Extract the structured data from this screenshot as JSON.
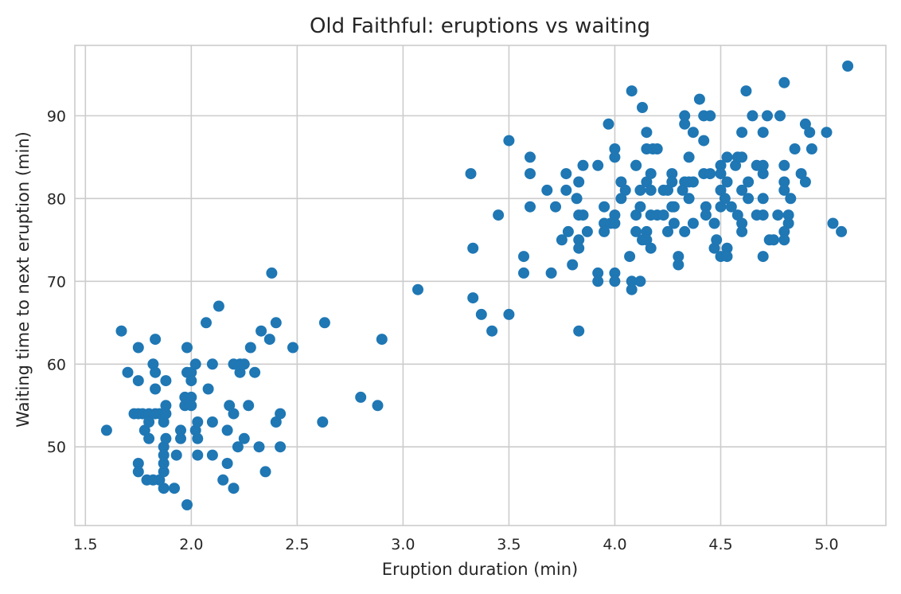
{
  "chart_data": {
    "type": "scatter",
    "title": "Old Faithful: eruptions vs waiting",
    "xlabel": "Eruption duration (min)",
    "ylabel": "Waiting time to next eruption (min)",
    "xlim": [
      1.45,
      5.28
    ],
    "ylim": [
      40.5,
      98.5
    ],
    "xticks": [
      1.5,
      2.0,
      2.5,
      3.0,
      3.5,
      4.0,
      4.5,
      5.0
    ],
    "xtick_labels": [
      "1.5",
      "2.0",
      "2.5",
      "3.0",
      "3.5",
      "4.0",
      "4.5",
      "5.0"
    ],
    "yticks": [
      50,
      60,
      70,
      80,
      90
    ],
    "ytick_labels": [
      "50",
      "60",
      "70",
      "80",
      "90"
    ],
    "grid": true,
    "marker_color": "#1f77b4",
    "points": [
      [
        1.6,
        52
      ],
      [
        1.67,
        64
      ],
      [
        1.7,
        59
      ],
      [
        1.73,
        54
      ],
      [
        1.75,
        62
      ],
      [
        1.75,
        58
      ],
      [
        1.75,
        48
      ],
      [
        1.75,
        47
      ],
      [
        1.75,
        54
      ],
      [
        1.77,
        54
      ],
      [
        1.78,
        52
      ],
      [
        1.79,
        46
      ],
      [
        1.8,
        51
      ],
      [
        1.8,
        54
      ],
      [
        1.8,
        53
      ],
      [
        1.82,
        60
      ],
      [
        1.82,
        46
      ],
      [
        1.83,
        59
      ],
      [
        1.83,
        63
      ],
      [
        1.83,
        54
      ],
      [
        1.83,
        57
      ],
      [
        1.85,
        54
      ],
      [
        1.85,
        46
      ],
      [
        1.87,
        45
      ],
      [
        1.87,
        47
      ],
      [
        1.87,
        50
      ],
      [
        1.87,
        53
      ],
      [
        1.87,
        48
      ],
      [
        1.87,
        49
      ],
      [
        1.88,
        51
      ],
      [
        1.88,
        54
      ],
      [
        1.88,
        55
      ],
      [
        1.88,
        58
      ],
      [
        1.92,
        45
      ],
      [
        1.93,
        49
      ],
      [
        1.95,
        51
      ],
      [
        1.95,
        52
      ],
      [
        1.97,
        55
      ],
      [
        1.97,
        56
      ],
      [
        1.98,
        43
      ],
      [
        1.98,
        62
      ],
      [
        1.98,
        59
      ],
      [
        2.0,
        59
      ],
      [
        2.0,
        58
      ],
      [
        2.0,
        56
      ],
      [
        2.0,
        55
      ],
      [
        2.02,
        60
      ],
      [
        2.02,
        52
      ],
      [
        2.03,
        49
      ],
      [
        2.03,
        53
      ],
      [
        2.03,
        51
      ],
      [
        2.07,
        65
      ],
      [
        2.08,
        57
      ],
      [
        2.1,
        60
      ],
      [
        2.1,
        53
      ],
      [
        2.1,
        49
      ],
      [
        2.13,
        67
      ],
      [
        2.15,
        46
      ],
      [
        2.17,
        52
      ],
      [
        2.17,
        48
      ],
      [
        2.18,
        55
      ],
      [
        2.2,
        54
      ],
      [
        2.2,
        45
      ],
      [
        2.2,
        60
      ],
      [
        2.22,
        50
      ],
      [
        2.23,
        59
      ],
      [
        2.23,
        60
      ],
      [
        2.25,
        60
      ],
      [
        2.25,
        51
      ],
      [
        2.27,
        55
      ],
      [
        2.28,
        62
      ],
      [
        2.3,
        59
      ],
      [
        2.32,
        50
      ],
      [
        2.33,
        64
      ],
      [
        2.35,
        47
      ],
      [
        2.37,
        63
      ],
      [
        2.38,
        71
      ],
      [
        2.4,
        65
      ],
      [
        2.4,
        53
      ],
      [
        2.42,
        54
      ],
      [
        2.42,
        50
      ],
      [
        2.48,
        62
      ],
      [
        2.62,
        53
      ],
      [
        2.63,
        65
      ],
      [
        2.8,
        56
      ],
      [
        2.88,
        55
      ],
      [
        2.9,
        63
      ],
      [
        3.07,
        69
      ],
      [
        3.32,
        83
      ],
      [
        3.33,
        74
      ],
      [
        3.33,
        68
      ],
      [
        3.37,
        66
      ],
      [
        3.42,
        64
      ],
      [
        3.45,
        78
      ],
      [
        3.5,
        87
      ],
      [
        3.5,
        66
      ],
      [
        3.57,
        73
      ],
      [
        3.57,
        71
      ],
      [
        3.6,
        85
      ],
      [
        3.6,
        83
      ],
      [
        3.6,
        79
      ],
      [
        3.68,
        81
      ],
      [
        3.7,
        71
      ],
      [
        3.72,
        79
      ],
      [
        3.75,
        75
      ],
      [
        3.77,
        83
      ],
      [
        3.77,
        81
      ],
      [
        3.78,
        76
      ],
      [
        3.8,
        72
      ],
      [
        3.82,
        80
      ],
      [
        3.83,
        82
      ],
      [
        3.83,
        78
      ],
      [
        3.83,
        75
      ],
      [
        3.83,
        74
      ],
      [
        3.83,
        64
      ],
      [
        3.85,
        84
      ],
      [
        3.85,
        78
      ],
      [
        3.87,
        76
      ],
      [
        3.92,
        84
      ],
      [
        3.92,
        71
      ],
      [
        3.92,
        70
      ],
      [
        3.95,
        77
      ],
      [
        3.95,
        76
      ],
      [
        3.95,
        79
      ],
      [
        3.97,
        89
      ],
      [
        3.98,
        77
      ],
      [
        4.0,
        86
      ],
      [
        4.0,
        85
      ],
      [
        4.0,
        78
      ],
      [
        4.0,
        77
      ],
      [
        4.0,
        71
      ],
      [
        4.0,
        70
      ],
      [
        4.03,
        82
      ],
      [
        4.03,
        80
      ],
      [
        4.05,
        81
      ],
      [
        4.07,
        73
      ],
      [
        4.08,
        69
      ],
      [
        4.08,
        70
      ],
      [
        4.08,
        93
      ],
      [
        4.1,
        84
      ],
      [
        4.1,
        84
      ],
      [
        4.1,
        78
      ],
      [
        4.1,
        76
      ],
      [
        4.12,
        79
      ],
      [
        4.12,
        81
      ],
      [
        4.12,
        70
      ],
      [
        4.13,
        91
      ],
      [
        4.13,
        75
      ],
      [
        4.15,
        88
      ],
      [
        4.15,
        86
      ],
      [
        4.15,
        82
      ],
      [
        4.15,
        76
      ],
      [
        4.15,
        75
      ],
      [
        4.17,
        83
      ],
      [
        4.17,
        81
      ],
      [
        4.17,
        78
      ],
      [
        4.17,
        74
      ],
      [
        4.18,
        86
      ],
      [
        4.2,
        86
      ],
      [
        4.2,
        78
      ],
      [
        4.23,
        81
      ],
      [
        4.23,
        78
      ],
      [
        4.25,
        76
      ],
      [
        4.25,
        81
      ],
      [
        4.27,
        83
      ],
      [
        4.27,
        79
      ],
      [
        4.27,
        82
      ],
      [
        4.28,
        77
      ],
      [
        4.28,
        79
      ],
      [
        4.3,
        72
      ],
      [
        4.3,
        73
      ],
      [
        4.32,
        81
      ],
      [
        4.33,
        90
      ],
      [
        4.33,
        89
      ],
      [
        4.33,
        82
      ],
      [
        4.33,
        76
      ],
      [
        4.35,
        85
      ],
      [
        4.35,
        82
      ],
      [
        4.35,
        80
      ],
      [
        4.37,
        88
      ],
      [
        4.37,
        82
      ],
      [
        4.37,
        77
      ],
      [
        4.4,
        92
      ],
      [
        4.42,
        90
      ],
      [
        4.42,
        87
      ],
      [
        4.42,
        83
      ],
      [
        4.43,
        79
      ],
      [
        4.43,
        78
      ],
      [
        4.45,
        90
      ],
      [
        4.45,
        83
      ],
      [
        4.47,
        77
      ],
      [
        4.47,
        74
      ],
      [
        4.48,
        75
      ],
      [
        4.5,
        84
      ],
      [
        4.5,
        83
      ],
      [
        4.5,
        81
      ],
      [
        4.5,
        79
      ],
      [
        4.5,
        73
      ],
      [
        4.52,
        80
      ],
      [
        4.53,
        85
      ],
      [
        4.53,
        82
      ],
      [
        4.53,
        74
      ],
      [
        4.53,
        73
      ],
      [
        4.55,
        79
      ],
      [
        4.57,
        84
      ],
      [
        4.58,
        85
      ],
      [
        4.58,
        78
      ],
      [
        4.6,
        85
      ],
      [
        4.6,
        77
      ],
      [
        4.6,
        88
      ],
      [
        4.6,
        81
      ],
      [
        4.6,
        76
      ],
      [
        4.62,
        93
      ],
      [
        4.63,
        82
      ],
      [
        4.63,
        80
      ],
      [
        4.65,
        90
      ],
      [
        4.67,
        84
      ],
      [
        4.67,
        78
      ],
      [
        4.7,
        88
      ],
      [
        4.7,
        84
      ],
      [
        4.7,
        83
      ],
      [
        4.7,
        80
      ],
      [
        4.7,
        78
      ],
      [
        4.7,
        73
      ],
      [
        4.72,
        90
      ],
      [
        4.73,
        75
      ],
      [
        4.75,
        75
      ],
      [
        4.77,
        78
      ],
      [
        4.78,
        90
      ],
      [
        4.8,
        94
      ],
      [
        4.8,
        84
      ],
      [
        4.8,
        82
      ],
      [
        4.8,
        81
      ],
      [
        4.8,
        76
      ],
      [
        4.8,
        75
      ],
      [
        4.82,
        77
      ],
      [
        4.82,
        78
      ],
      [
        4.83,
        80
      ],
      [
        4.85,
        86
      ],
      [
        4.88,
        83
      ],
      [
        4.9,
        89
      ],
      [
        4.9,
        82
      ],
      [
        4.92,
        88
      ],
      [
        4.93,
        86
      ],
      [
        5.0,
        88
      ],
      [
        5.03,
        77
      ],
      [
        5.07,
        76
      ],
      [
        5.1,
        96
      ]
    ]
  }
}
